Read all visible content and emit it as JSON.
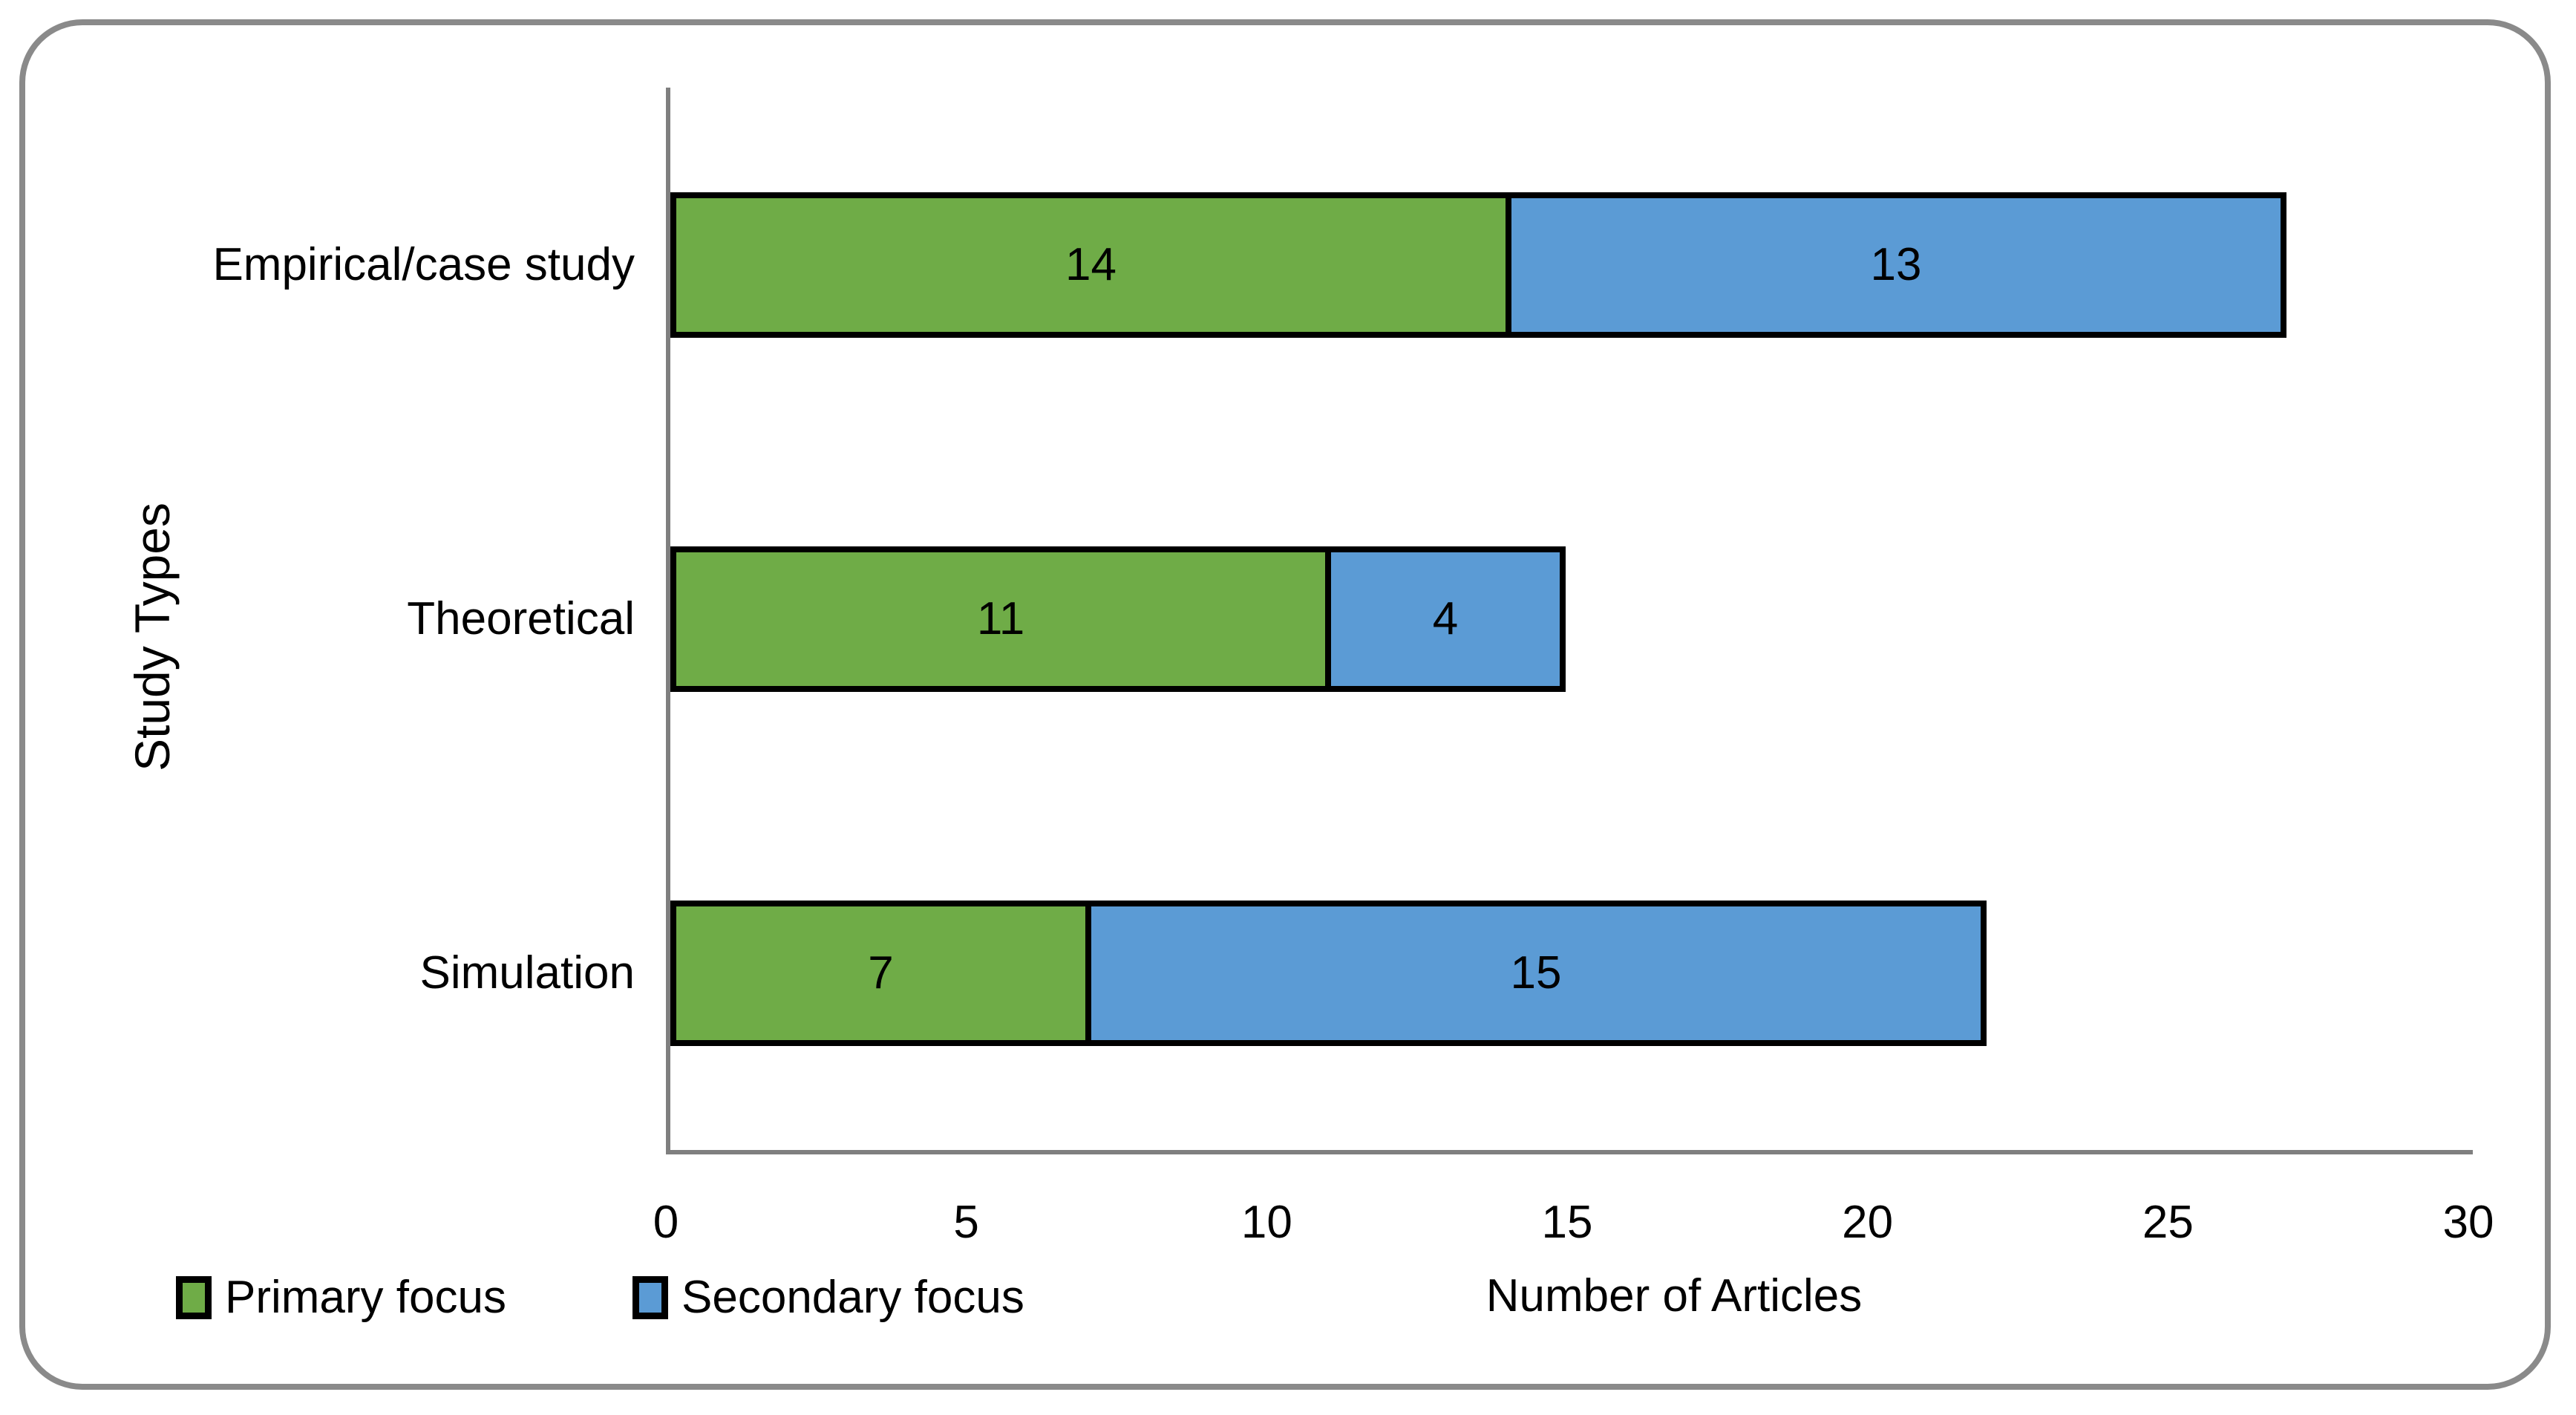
{
  "chart_data": {
    "type": "bar",
    "orientation": "horizontal",
    "stacked": true,
    "title": "",
    "xlabel": "Number of Articles",
    "ylabel": "Study Types",
    "categories": [
      "Empirical/case study",
      "Theoretical",
      "Simulation"
    ],
    "series": [
      {
        "name": "Primary focus",
        "color": "#6FAC47",
        "values": [
          14,
          11,
          7
        ]
      },
      {
        "name": "Secondary focus",
        "color": "#5B9BD5",
        "values": [
          13,
          4,
          15
        ]
      }
    ],
    "totals": [
      27,
      15,
      22
    ],
    "xlim": [
      0,
      30
    ],
    "xticks": [
      0,
      5,
      10,
      15,
      20,
      25,
      30
    ],
    "grid": "off",
    "legend_position": "bottom-left",
    "bar_border_color": "#000000",
    "axis_line_color": "#7f7f7f",
    "frame_border_color": "#8a8a8a",
    "data_label_color": "#000000"
  }
}
